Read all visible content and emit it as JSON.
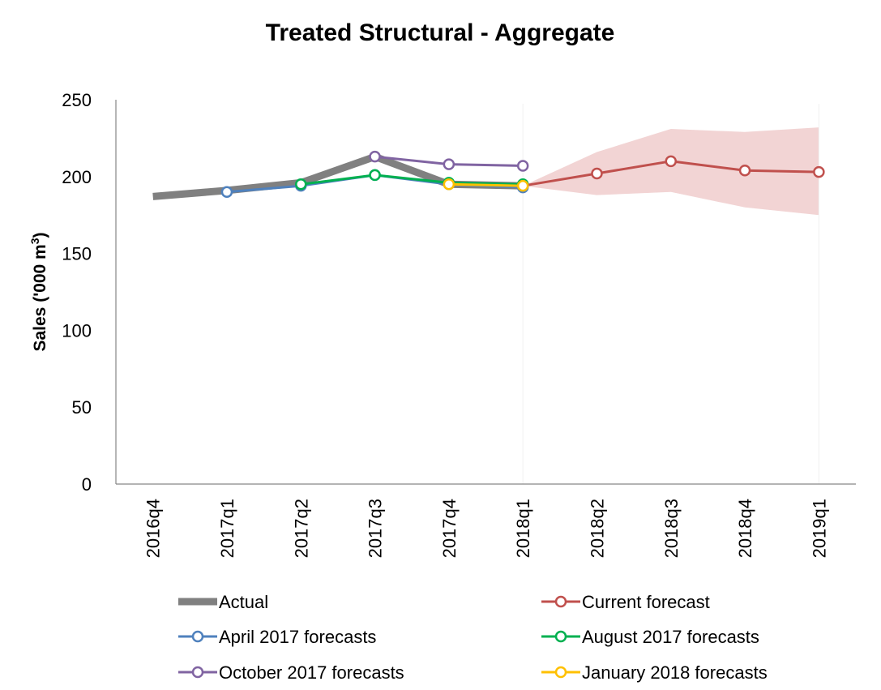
{
  "chart_data": {
    "type": "line",
    "title": "Treated Structural - Aggregate",
    "ylabel": "Sales ('000 m",
    "ylabel_superscript": "3",
    "ylabel_suffix": ")",
    "xlabel": "",
    "ylim": [
      0,
      250
    ],
    "yticks": [
      0,
      50,
      100,
      150,
      200,
      250
    ],
    "categories": [
      "2016q4",
      "2017q1",
      "2017q2",
      "2017q3",
      "2017q4",
      "2018q1",
      "2018q2",
      "2018q3",
      "2018q4",
      "2019q1"
    ],
    "series": [
      {
        "name": "Actual",
        "color": "#808080",
        "marker": false,
        "values": [
          187,
          191,
          196,
          213,
          195,
          194,
          null,
          null,
          null,
          null
        ]
      },
      {
        "name": "Current forecast",
        "color": "#c0504d",
        "marker": true,
        "values": [
          null,
          null,
          null,
          null,
          null,
          194,
          202,
          210,
          204,
          203
        ]
      },
      {
        "name": "April 2017 forecasts",
        "color": "#4f81bd",
        "marker": true,
        "values": [
          null,
          190,
          194,
          201,
          195,
          193,
          null,
          null,
          null,
          null
        ]
      },
      {
        "name": "August 2017 forecasts",
        "color": "#00b050",
        "marker": true,
        "values": [
          null,
          null,
          195,
          201,
          196,
          195,
          null,
          null,
          null,
          null
        ]
      },
      {
        "name": "October 2017 forecasts",
        "color": "#8064a2",
        "marker": true,
        "values": [
          null,
          null,
          null,
          213,
          208,
          207,
          null,
          null,
          null,
          null
        ]
      },
      {
        "name": "January 2018 forecasts",
        "color": "#ffc000",
        "marker": true,
        "values": [
          null,
          null,
          null,
          null,
          195,
          194,
          null,
          null,
          null,
          null
        ]
      }
    ],
    "band": {
      "color": "#f2d4d4",
      "upper": [
        null,
        null,
        null,
        null,
        null,
        194,
        216,
        231,
        229,
        232
      ],
      "lower": [
        null,
        null,
        null,
        null,
        null,
        194,
        188,
        190,
        180,
        175
      ]
    },
    "legend": {
      "placement": "bottom",
      "order": [
        "Actual",
        "Current forecast",
        "April 2017 forecasts",
        "August 2017 forecasts",
        "October 2017 forecasts",
        "January 2018 forecasts"
      ]
    }
  }
}
